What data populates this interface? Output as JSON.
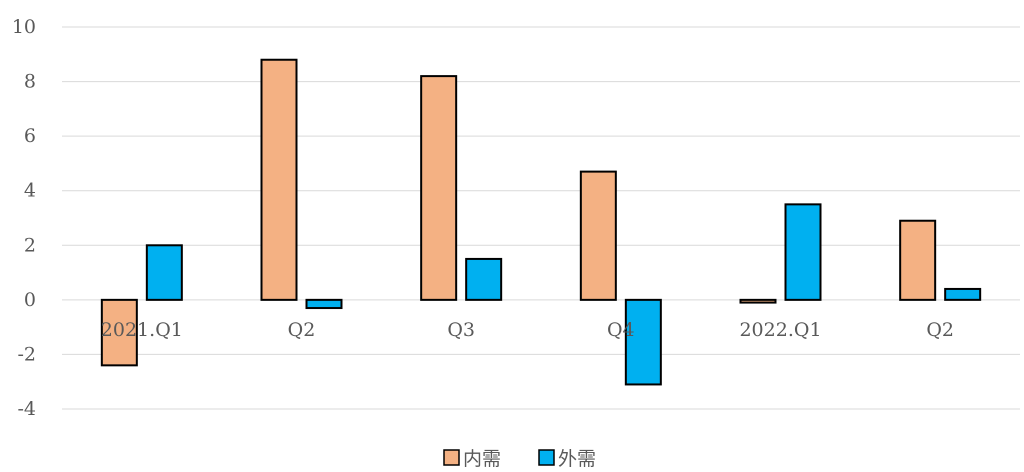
{
  "chart_data": {
    "type": "bar",
    "title": "",
    "xlabel": "",
    "ylabel": "",
    "categories": [
      "2021.Q1",
      "Q2",
      "Q3",
      "Q4",
      "2022.Q1",
      "Q2"
    ],
    "series": [
      {
        "name": "内需",
        "color": "#F4B183",
        "values": [
          -2.4,
          8.8,
          8.2,
          4.7,
          -0.1,
          2.9
        ]
      },
      {
        "name": "外需",
        "color": "#00B0F0",
        "values": [
          2.0,
          -0.3,
          1.5,
          -3.1,
          3.5,
          0.4
        ]
      }
    ],
    "ylim": [
      -4,
      10
    ],
    "yticks": [
      10,
      8,
      6,
      4,
      2,
      0,
      -2,
      -4
    ],
    "grid": true,
    "legend_position": "bottom"
  }
}
